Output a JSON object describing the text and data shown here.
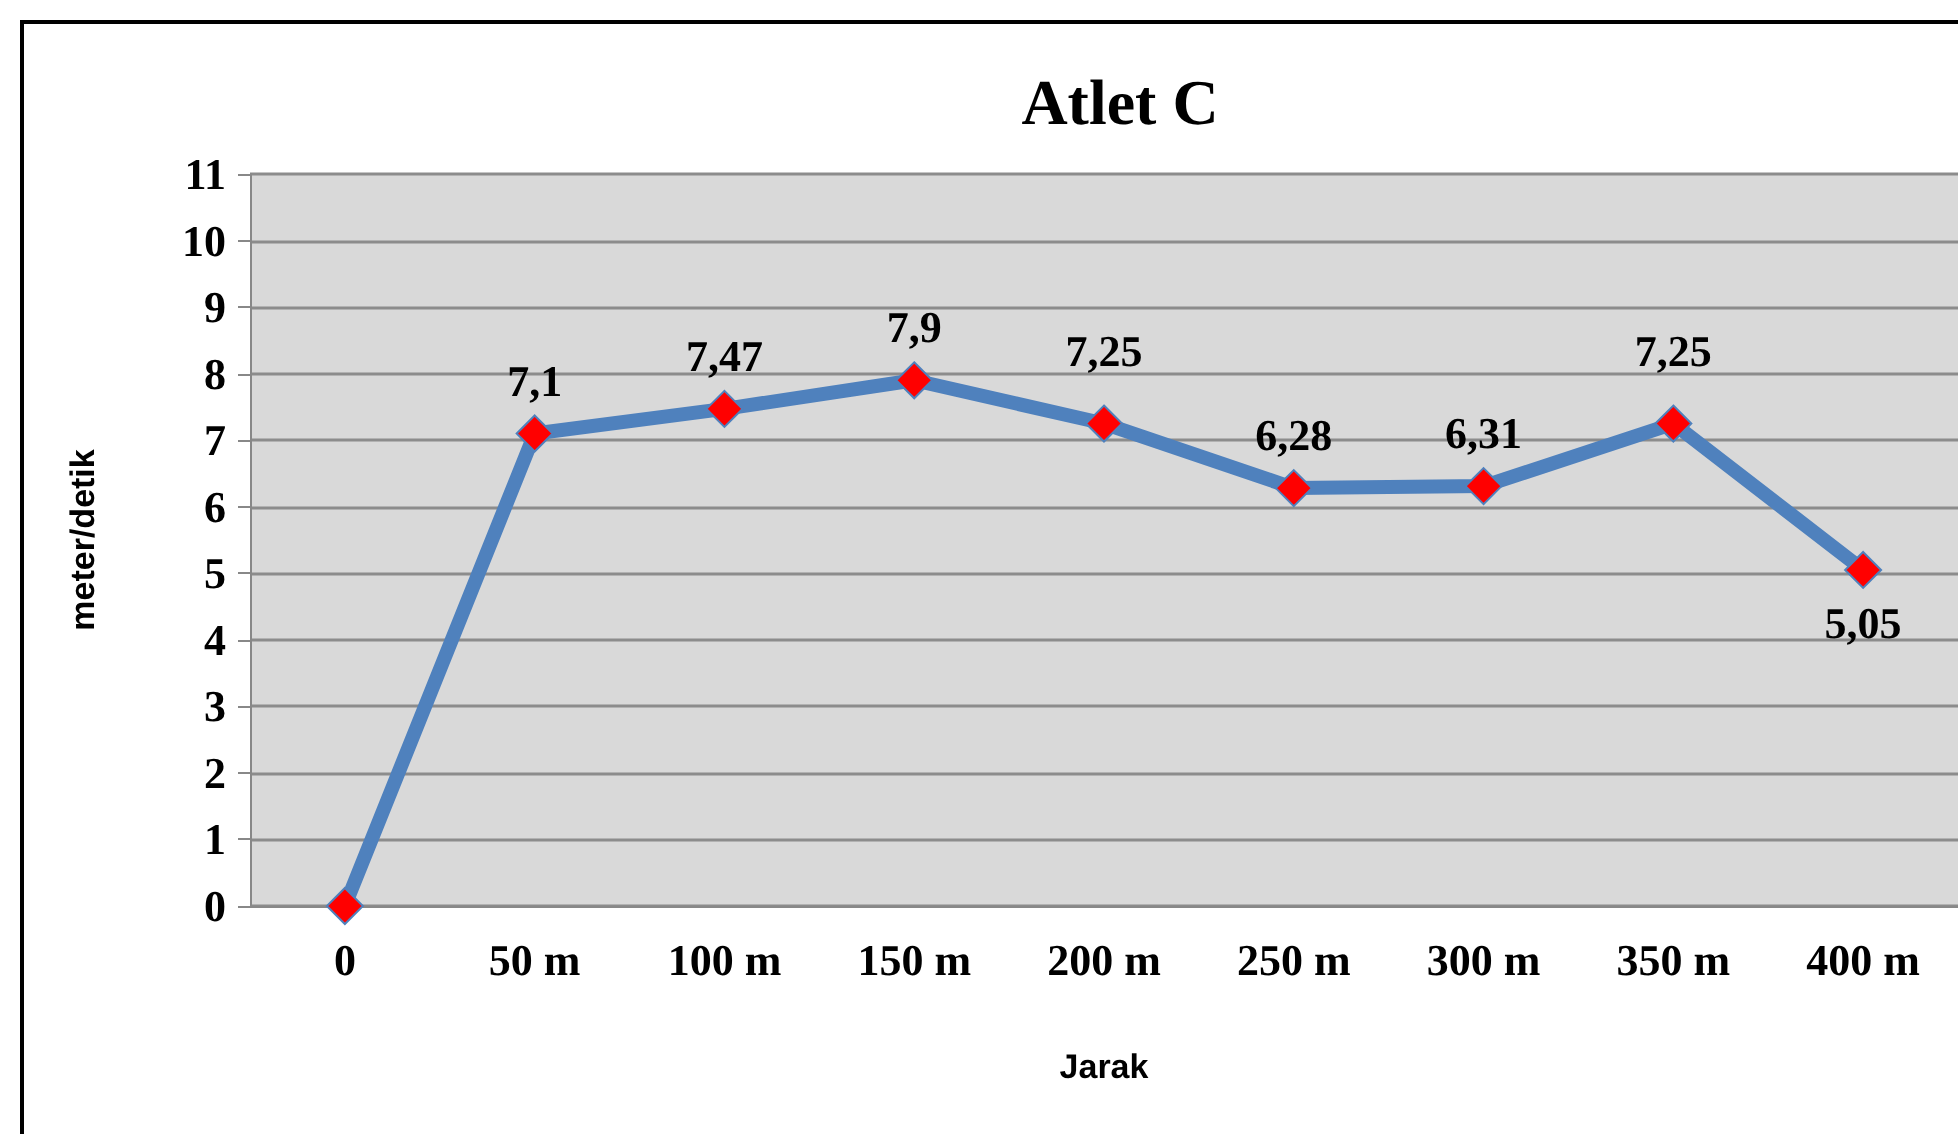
{
  "chart_data": {
    "type": "line",
    "title": "Atlet C",
    "xlabel": "Jarak",
    "ylabel": "meter/detik",
    "categories": [
      "0",
      "50 m",
      "100 m",
      "150 m",
      "200 m",
      "250 m",
      "300 m",
      "350 m",
      "400 m"
    ],
    "series": [
      {
        "color": "#4f81bd",
        "colors": [
          "#ff0000",
          "#ff0000",
          "#ff0000",
          "#ff0000",
          "#ff0000",
          "#ff0000",
          "#ff0000",
          "#ff0000",
          "#ff0000"
        ],
        "values": [
          0,
          7.1,
          7.47,
          7.9,
          7.25,
          6.28,
          6.31,
          7.25,
          5.05
        ],
        "value_labels": [
          null,
          "7,1",
          "7,47",
          "7,9",
          "7,25",
          "6,28",
          "6,31",
          "7,25",
          "5,05"
        ]
      }
    ],
    "ylim": [
      0,
      11
    ],
    "yticks": [
      0,
      1,
      2,
      3,
      4,
      5,
      6,
      7,
      8,
      9,
      10,
      11
    ],
    "grid": "y",
    "marker": "diamond",
    "line_style": "solid"
  }
}
